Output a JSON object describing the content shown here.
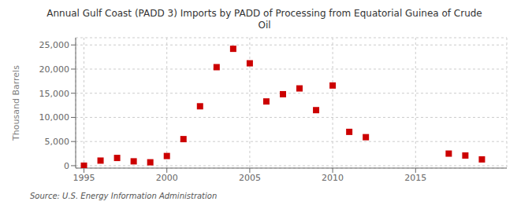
{
  "chart_data": {
    "type": "scatter",
    "title": "Annual Gulf Coast (PADD 3) Imports by PADD of Processing from Equatorial Guinea of Crude\nOil",
    "ylabel": "Thousand Barrels",
    "source": "Source: U.S. Energy Information Administration",
    "x": [
      1995,
      1996,
      1997,
      1998,
      1999,
      2000,
      2001,
      2002,
      2003,
      2004,
      2005,
      2006,
      2007,
      2008,
      2009,
      2010,
      2011,
      2012,
      2017,
      2018,
      2019
    ],
    "values": [
      0,
      1050,
      1600,
      900,
      700,
      2000,
      5500,
      12300,
      20400,
      24200,
      21200,
      13300,
      14800,
      16000,
      11500,
      16600,
      7000,
      5900,
      2500,
      2100,
      1300
    ],
    "color": "#cc0000",
    "marker": "square",
    "xlim": [
      1994.5,
      2020.5
    ],
    "xticks": [
      1995,
      2000,
      2005,
      2010,
      2015
    ],
    "ylim": [
      -500,
      26500
    ],
    "yticks": [
      0,
      {
        "value": 5000,
        "label": "5,000"
      },
      {
        "value": 10000,
        "label": "10,000"
      },
      {
        "value": 15000,
        "label": "15,000"
      },
      {
        "value": 20000,
        "label": "20,000"
      },
      {
        "value": 25000,
        "label": "25,000"
      }
    ],
    "grid": true
  }
}
